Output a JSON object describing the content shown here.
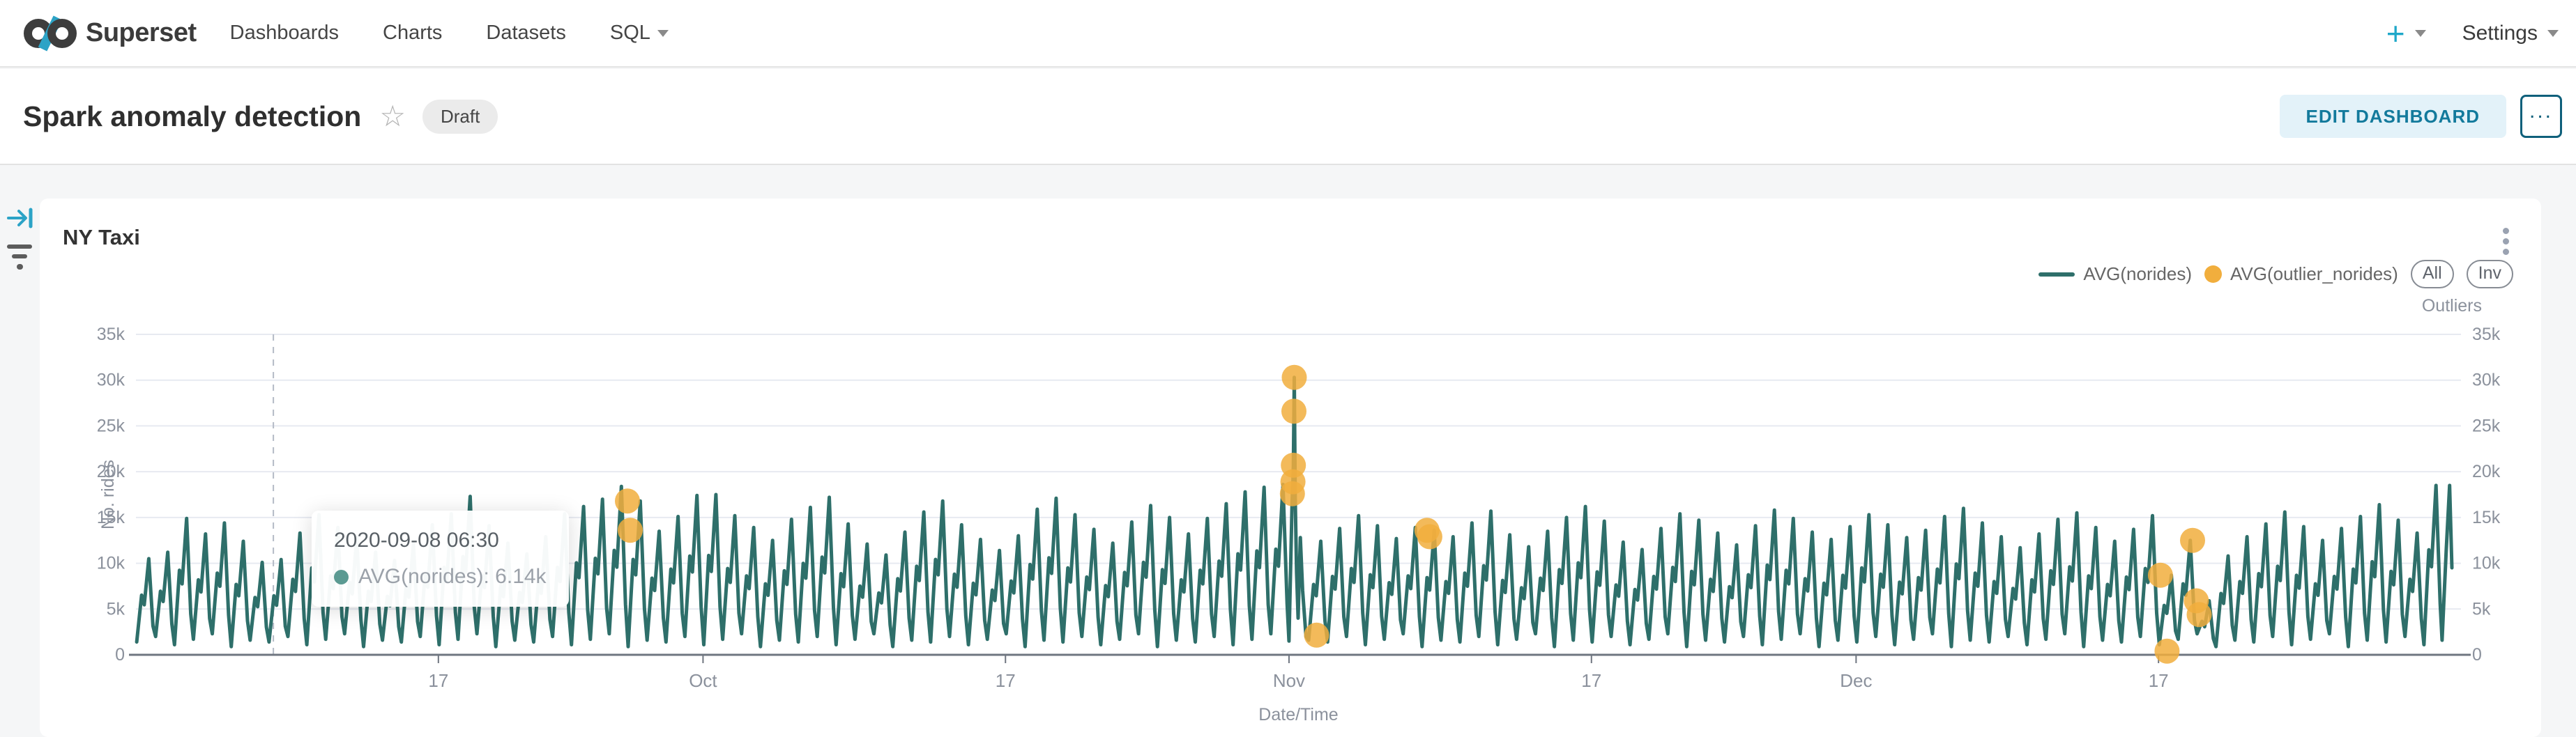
{
  "nav": {
    "brand": "Superset",
    "items": [
      {
        "label": "Dashboards"
      },
      {
        "label": "Charts"
      },
      {
        "label": "Datasets"
      },
      {
        "label": "SQL"
      }
    ],
    "actions": {
      "plus": "+",
      "settings": "Settings"
    },
    "brand_colors": {
      "dark": "#3b3b3b",
      "teal": "#1FA8C9"
    }
  },
  "header": {
    "title": "Spark anomaly detection",
    "star_icon": "☆",
    "badge": "Draft",
    "edit_button": "EDIT DASHBOARD",
    "more_button": "..."
  },
  "card": {
    "title": "NY Taxi",
    "legend": [
      {
        "label": "AVG(norides)",
        "type": "line",
        "color": "#2e6f6a"
      },
      {
        "label": "AVG(outlier_norides)",
        "type": "circle",
        "color": "#f1ae3d"
      }
    ],
    "buttons": [
      {
        "label": "All"
      },
      {
        "label": "Inv"
      }
    ],
    "right_axis_title": "Outliers"
  },
  "tooltip": {
    "date": "2020-09-08 06:30",
    "series": "AVG(norides)",
    "value": "6.14k",
    "entry": "AVG(norides): 6.14k",
    "dot_color": "#5b9a92"
  },
  "chart_data": {
    "type": "line",
    "title": "NY Taxi",
    "xlabel": "Date/Time",
    "ylabel": "No. rides",
    "x_range": [
      "2020-09-01",
      "2021-01-01"
    ],
    "ylim": [
      0,
      35000
    ],
    "grid": true,
    "legend_position": "top-right",
    "y_ticks": [
      "0",
      "5k",
      "10k",
      "15k",
      "20k",
      "25k",
      "30k",
      "35k"
    ],
    "x_ticks": [
      {
        "label": "17",
        "day": 16
      },
      {
        "label": "Oct",
        "day": 30
      },
      {
        "label": "17",
        "day": 46
      },
      {
        "label": "Nov",
        "day": 61
      },
      {
        "label": "17",
        "day": 77
      },
      {
        "label": "Dec",
        "day": 91
      },
      {
        "label": "17",
        "day": 107
      }
    ],
    "crosshair_day": 7.27,
    "series": [
      {
        "name": "AVG(norides)",
        "type": "line",
        "color": "#2e6f6a",
        "daily_peaks_k": [
          10.5,
          11.2,
          14.9,
          13.2,
          14.4,
          12.4,
          10.1,
          10.4,
          13.3,
          15.3,
          13.9,
          12.8,
          11.2,
          10.3,
          12.1,
          14.2,
          15.4,
          17.3,
          14.1,
          12.2,
          11.0,
          12.9,
          15.4,
          16.2,
          17.0,
          18.4,
          16.8,
          13.5,
          15.1,
          17.4,
          17.5,
          15.2,
          13.9,
          12.5,
          14.8,
          16.1,
          17.2,
          14.3,
          12.1,
          10.9,
          13.4,
          15.6,
          16.8,
          14.2,
          12.6,
          11.4,
          13.0,
          15.9,
          17.1,
          15.3,
          13.7,
          12.2,
          14.5,
          16.3,
          15.0,
          13.2,
          14.9,
          16.5,
          17.8,
          18.3,
          18.6,
          30.3,
          12.4,
          13.8,
          15.2,
          14.1,
          12.7,
          13.9,
          13.6,
          12.9,
          14.4,
          15.7,
          13.1,
          11.8,
          13.5,
          15.0,
          16.2,
          14.6,
          12.3,
          11.5,
          13.8,
          15.4,
          14.7,
          13.3,
          12.0,
          14.1,
          15.8,
          14.9,
          13.4,
          12.6,
          14.0,
          15.3,
          14.2,
          12.8,
          13.6,
          15.1,
          16.0,
          14.4,
          12.9,
          11.7,
          13.2,
          14.8,
          15.5,
          13.9,
          12.4,
          13.7,
          15.2,
          8.7,
          12.5,
          5.9,
          10.8,
          12.9,
          14.3,
          15.6,
          14.0,
          12.5,
          13.8,
          15.1,
          16.4,
          14.7,
          13.3,
          18.5
        ],
        "trough_cycle_k": [
          1.4,
          2.0,
          1.1,
          1.7,
          2.3,
          0.9,
          1.6
        ],
        "anomaly_profile": [
          [
            61.0,
            1.5
          ],
          [
            61.1,
            11.0
          ],
          [
            61.16,
            16.5
          ],
          [
            61.18,
            17.6
          ],
          [
            61.21,
            18.9
          ],
          [
            61.23,
            20.7
          ],
          [
            61.26,
            26.6
          ],
          [
            61.28,
            30.3
          ],
          [
            61.33,
            17.0
          ],
          [
            61.4,
            9.0
          ],
          [
            61.48,
            4.0
          ],
          [
            61.6,
            12.8
          ],
          [
            61.72,
            7.0
          ],
          [
            61.9,
            2.0
          ]
        ],
        "ending_profile": [
          [
            122.0,
            1.6
          ],
          [
            122.22,
            11.5
          ],
          [
            122.4,
            18.5
          ],
          [
            122.52,
            9.5
          ]
        ]
      },
      {
        "name": "AVG(outlier_norides)",
        "type": "scatter",
        "color": "#f1ae3d",
        "points_day_valuek": [
          [
            26.0,
            16.8
          ],
          [
            26.15,
            13.6
          ],
          [
            61.18,
            17.6
          ],
          [
            61.21,
            18.9
          ],
          [
            61.23,
            20.7
          ],
          [
            61.26,
            26.6
          ],
          [
            61.28,
            30.3
          ],
          [
            62.46,
            2.15
          ],
          [
            68.3,
            13.6
          ],
          [
            68.45,
            12.9
          ],
          [
            107.1,
            8.7
          ],
          [
            107.45,
            0.4
          ],
          [
            108.8,
            12.5
          ],
          [
            109.0,
            5.9
          ],
          [
            109.15,
            4.4
          ]
        ]
      }
    ],
    "tooltip": {
      "date": "2020-09-08 06:30",
      "label": "AVG(norides)",
      "value": "6.14k"
    }
  }
}
